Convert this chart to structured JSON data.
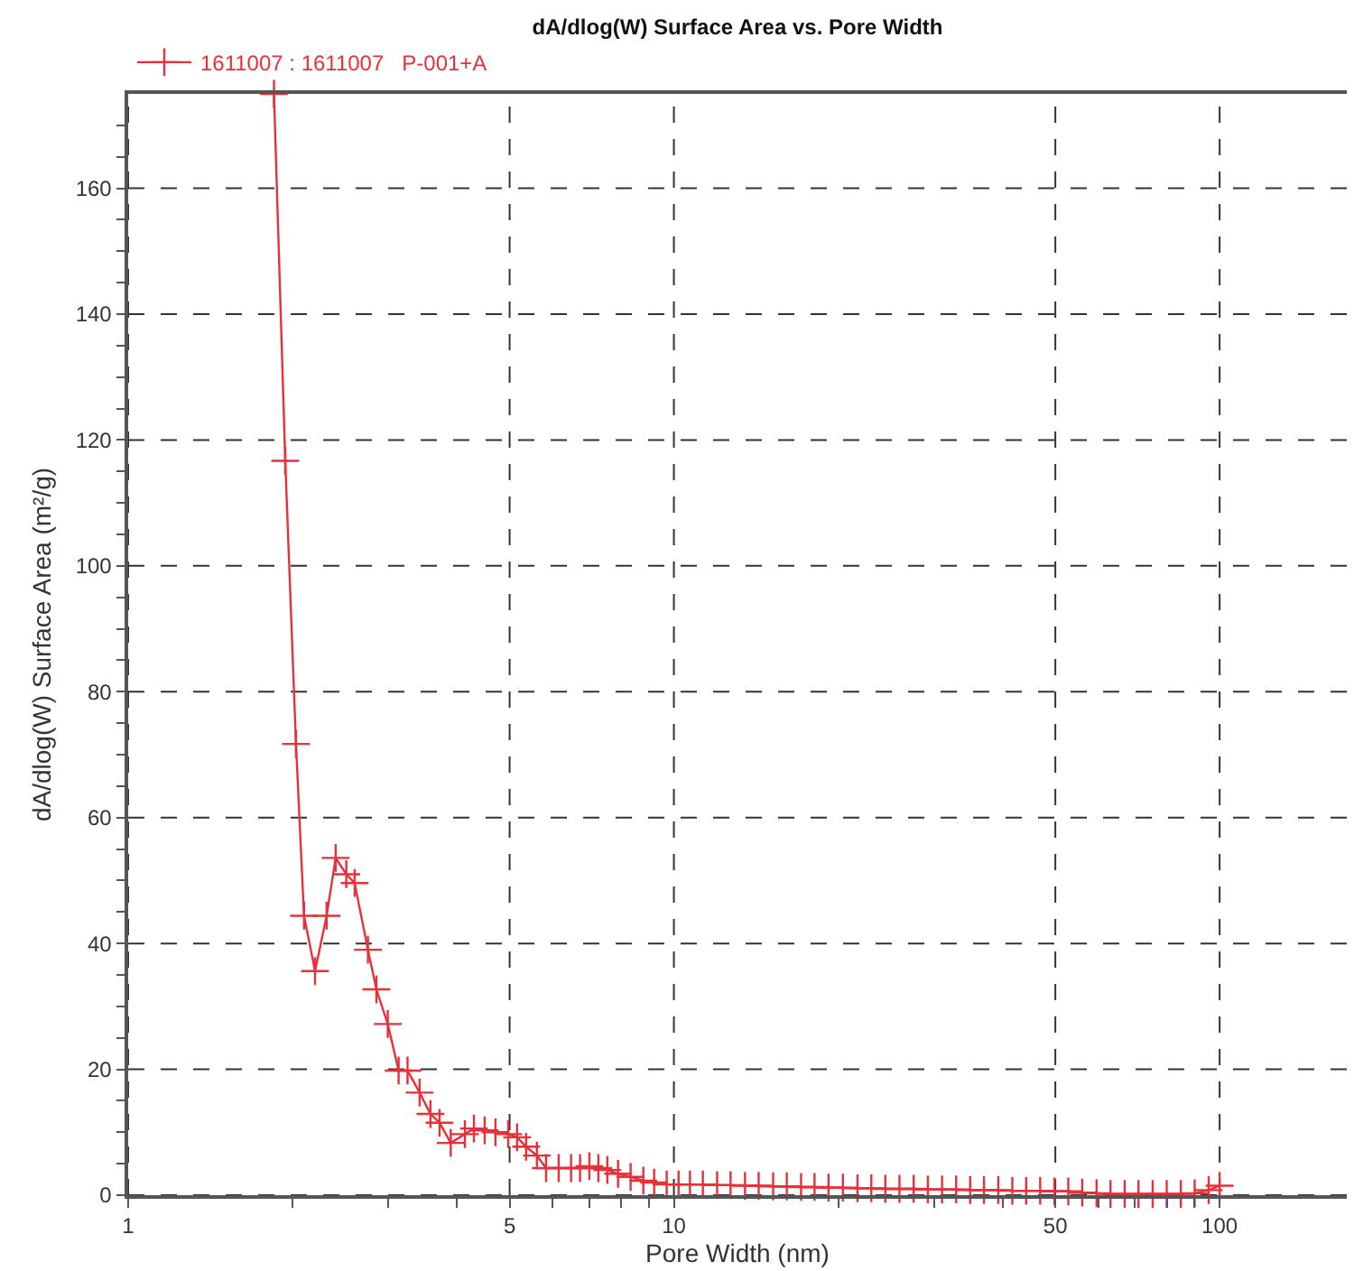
{
  "chart_data": {
    "type": "line",
    "title": "dA/dlog(W) Surface Area vs. Pore Width",
    "xlabel": "Pore Width (nm)",
    "ylabel": "dA/dlog(W) Surface Area (m²/g)",
    "log": "x",
    "xlim": [
      1,
      171
    ],
    "ylim": [
      0,
      175
    ],
    "xticks": [
      1,
      {
        "value": 2,
        "label": null
      },
      {
        "value": 3,
        "label": null
      },
      {
        "value": 4,
        "label": null
      },
      5,
      {
        "value": 6,
        "label": null
      },
      {
        "value": 7,
        "label": null
      },
      {
        "value": 8,
        "label": null
      },
      {
        "value": 9,
        "label": null
      },
      10,
      {
        "value": 20,
        "label": null
      },
      {
        "value": 30,
        "label": null
      },
      {
        "value": 40,
        "label": null
      },
      50,
      {
        "value": 60,
        "label": null
      },
      {
        "value": 70,
        "label": null
      },
      {
        "value": 80,
        "label": null
      },
      {
        "value": 90,
        "label": null
      },
      100
    ],
    "yticks": [
      0,
      {
        "value": 5,
        "label": null
      },
      {
        "value": 10,
        "label": null
      },
      {
        "value": 15,
        "label": null
      },
      20,
      {
        "value": 25,
        "label": null
      },
      {
        "value": 30,
        "label": null
      },
      {
        "value": 35,
        "label": null
      },
      40,
      {
        "value": 45,
        "label": null
      },
      {
        "value": 50,
        "label": null
      },
      {
        "value": 55,
        "label": null
      },
      60,
      {
        "value": 65,
        "label": null
      },
      {
        "value": 70,
        "label": null
      },
      {
        "value": 75,
        "label": null
      },
      80,
      {
        "value": 85,
        "label": null
      },
      {
        "value": 90,
        "label": null
      },
      {
        "value": 95,
        "label": null
      },
      100,
      {
        "value": 105,
        "label": null
      },
      {
        "value": 110,
        "label": null
      },
      {
        "value": 115,
        "label": null
      },
      120,
      {
        "value": 125,
        "label": null
      },
      {
        "value": 130,
        "label": null
      },
      {
        "value": 135,
        "label": null
      },
      140,
      {
        "value": 145,
        "label": null
      },
      {
        "value": 150,
        "label": null
      },
      {
        "value": 155,
        "label": null
      },
      160,
      {
        "value": 165,
        "label": null
      },
      {
        "value": 170,
        "label": null
      }
    ],
    "grid": true,
    "legend": "top left",
    "marker": "cross",
    "line_style": "solid",
    "series": [
      {
        "name": "1611007 : 1611007   P-001+A",
        "color": "#e8303a",
        "x": [
          1.85,
          1.94,
          2.03,
          2.1,
          2.2,
          2.31,
          2.4,
          2.51,
          2.6,
          2.75,
          2.85,
          2.99,
          3.13,
          3.25,
          3.42,
          3.58,
          3.72,
          3.9,
          4.14,
          4.3,
          4.5,
          4.71,
          4.97,
          5.16,
          5.36,
          5.61,
          5.83,
          6.15,
          6.48,
          6.73,
          7.0,
          7.27,
          7.55,
          7.9,
          8.33,
          8.79,
          9.2,
          9.7,
          10.2,
          10.7,
          11.3,
          12,
          12.7,
          13.5,
          14.3,
          15.2,
          16.1,
          17.1,
          18.1,
          19.2,
          20.4,
          21.7,
          23,
          24.4,
          25.9,
          27.5,
          29.2,
          31,
          32.9,
          34.9,
          37,
          39.3,
          41.7,
          44.2,
          46.9,
          49.8,
          52.8,
          56,
          59.5,
          63.1,
          67,
          71,
          75.4,
          80,
          84.9,
          90,
          95.5,
          100
        ],
        "values": [
          175,
          116.7,
          71.7,
          44.4,
          35.6,
          44.4,
          53.6,
          51,
          49.6,
          39,
          32.7,
          27.2,
          19.8,
          19.8,
          16.3,
          12.9,
          11.5,
          8.3,
          9.7,
          10.6,
          10.3,
          10.0,
          9.7,
          9.2,
          7.7,
          6.3,
          4.3,
          4.3,
          4.3,
          4.3,
          4.6,
          4.3,
          4.0,
          3.4,
          2.9,
          2.3,
          2.0,
          1.7,
          1.7,
          1.7,
          1.7,
          1.6,
          1.6,
          1.5,
          1.5,
          1.4,
          1.4,
          1.3,
          1.3,
          1.2,
          1.2,
          1.1,
          1.1,
          1.0,
          1.0,
          1.0,
          0.9,
          0.9,
          0.9,
          0.8,
          0.8,
          0.8,
          0.7,
          0.7,
          0.7,
          0.6,
          0.6,
          0.4,
          0.3,
          0.2,
          0.2,
          0.2,
          0.2,
          0.2,
          0.2,
          0.3,
          0.8,
          1.5
        ]
      }
    ]
  }
}
